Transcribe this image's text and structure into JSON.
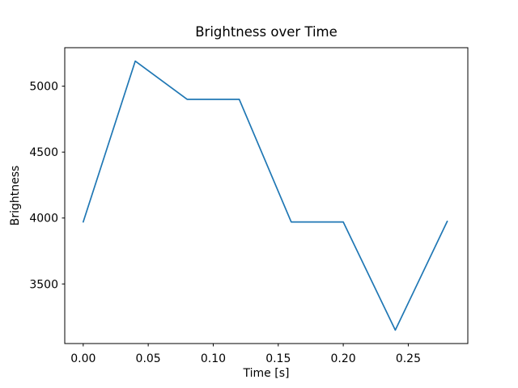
{
  "chart_data": {
    "type": "line",
    "title": "Brightness over Time",
    "xlabel": "Time [s]",
    "ylabel": "Brightness",
    "x": [
      0.0,
      0.04,
      0.08,
      0.12,
      0.16,
      0.2,
      0.24,
      0.28
    ],
    "y": [
      3970,
      5190,
      4900,
      4900,
      3970,
      3970,
      3150,
      3975
    ],
    "xticks": {
      "values": [
        0.0,
        0.05,
        0.1,
        0.15,
        0.2,
        0.25
      ],
      "labels": [
        "0.00",
        "0.05",
        "0.10",
        "0.15",
        "0.20",
        "0.25"
      ]
    },
    "yticks": {
      "values": [
        3500,
        4000,
        4500,
        5000
      ],
      "labels": [
        "3500",
        "4000",
        "4500",
        "5000"
      ]
    },
    "xlim": [
      -0.0142,
      0.2958
    ],
    "ylim": [
      3048,
      5292
    ],
    "grid": false,
    "legend": null,
    "line_color": "#1f77b4",
    "axis_color": "#000000",
    "background_color": "#ffffff"
  }
}
